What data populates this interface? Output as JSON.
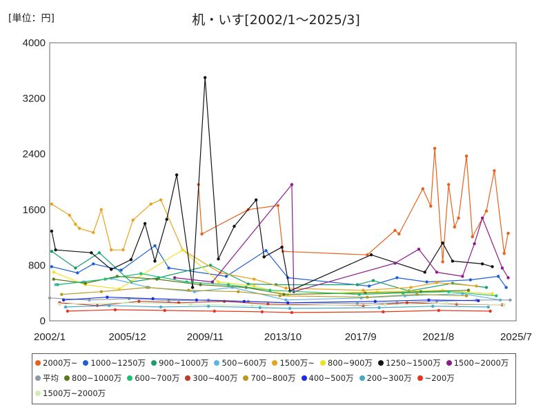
{
  "header": {
    "unit": "[単位：円]",
    "title": "机・いす[2002/1〜2025/3]"
  },
  "chart_data": {
    "type": "line",
    "title": "机・いす[2002/1〜2025/3]",
    "unit_label": "[単位：円]",
    "ylim": [
      0,
      4000
    ],
    "y_ticks": [
      "0",
      "800",
      "1600",
      "2400",
      "3200",
      "4000"
    ],
    "y_tick_values": [
      0,
      800,
      1600,
      2400,
      3200,
      4000
    ],
    "x_ticks": [
      "2002/1",
      "2005/12",
      "2009/11",
      "2013/10",
      "2017/9",
      "2021/8",
      "2025/7"
    ],
    "x_tick_values": [
      2002.0,
      2005.917,
      2009.833,
      2013.75,
      2017.667,
      2021.583,
      2025.5
    ],
    "xlim": [
      2002.0,
      2025.5
    ],
    "grid": true,
    "legend_position": "bottom",
    "series": [
      {
        "name": "2000万~",
        "color": "#e8601c",
        "points": [
          [
            2009.5,
            1960
          ],
          [
            2009.67,
            1250
          ],
          [
            2012.0,
            1600
          ],
          [
            2013.5,
            1660
          ],
          [
            2013.75,
            1000
          ],
          [
            2018.0,
            950
          ],
          [
            2019.4,
            1300
          ],
          [
            2019.6,
            1250
          ],
          [
            2020.8,
            1900
          ],
          [
            2021.2,
            1650
          ],
          [
            2021.4,
            2480
          ],
          [
            2021.8,
            850
          ],
          [
            2022.1,
            1960
          ],
          [
            2022.4,
            1350
          ],
          [
            2022.6,
            1480
          ],
          [
            2023.0,
            2370
          ],
          [
            2023.3,
            1210
          ],
          [
            2024.0,
            1580
          ],
          [
            2024.4,
            2160
          ],
          [
            2024.9,
            970
          ],
          [
            2025.1,
            1260
          ]
        ]
      },
      {
        "name": "1000~1250万",
        "color": "#1f5fd6",
        "points": [
          [
            2002.1,
            780
          ],
          [
            2003.4,
            690
          ],
          [
            2004.2,
            820
          ],
          [
            2005.6,
            730
          ],
          [
            2007.3,
            1080
          ],
          [
            2008.0,
            760
          ],
          [
            2010.9,
            640
          ],
          [
            2012.9,
            1010
          ],
          [
            2014.0,
            620
          ],
          [
            2018.1,
            500
          ],
          [
            2019.5,
            620
          ],
          [
            2021.0,
            560
          ],
          [
            2023.2,
            590
          ],
          [
            2024.6,
            640
          ],
          [
            2025.0,
            480
          ]
        ]
      },
      {
        "name": "900~1000万",
        "color": "#16a068",
        "points": [
          [
            2002.1,
            1000
          ],
          [
            2003.3,
            760
          ],
          [
            2004.5,
            980
          ],
          [
            2006.1,
            560
          ],
          [
            2007.5,
            620
          ],
          [
            2010.1,
            800
          ],
          [
            2012.0,
            530
          ],
          [
            2013.4,
            520
          ],
          [
            2017.5,
            520
          ],
          [
            2018.3,
            580
          ],
          [
            2020.1,
            430
          ],
          [
            2022.3,
            540
          ],
          [
            2024.0,
            480
          ]
        ]
      },
      {
        "name": "500~600万",
        "color": "#5ab4e8",
        "points": [
          [
            2002.3,
            520
          ],
          [
            2003.7,
            560
          ],
          [
            2005.1,
            610
          ],
          [
            2007.0,
            480
          ],
          [
            2009.3,
            420
          ],
          [
            2011.2,
            480
          ],
          [
            2013.9,
            300
          ],
          [
            2017.7,
            330
          ],
          [
            2019.9,
            360
          ],
          [
            2022.8,
            390
          ],
          [
            2024.7,
            300
          ]
        ]
      },
      {
        "name": "1500万~",
        "color": "#e8a21c",
        "points": [
          [
            2002.1,
            1680
          ],
          [
            2003.0,
            1520
          ],
          [
            2003.3,
            1390
          ],
          [
            2003.5,
            1330
          ],
          [
            2004.2,
            1270
          ],
          [
            2004.6,
            1600
          ],
          [
            2005.1,
            1020
          ],
          [
            2005.7,
            1020
          ],
          [
            2006.2,
            1450
          ],
          [
            2007.1,
            1680
          ],
          [
            2007.6,
            1740
          ],
          [
            2008.7,
            1020
          ],
          [
            2010.6,
            690
          ],
          [
            2012.3,
            600
          ],
          [
            2013.9,
            470
          ],
          [
            2017.8,
            440
          ],
          [
            2020.2,
            480
          ],
          [
            2021.5,
            550
          ],
          [
            2023.5,
            500
          ]
        ]
      },
      {
        "name": "800~900万",
        "color": "#f0e020",
        "points": [
          [
            2002.2,
            700
          ],
          [
            2003.8,
            520
          ],
          [
            2005.5,
            460
          ],
          [
            2008.7,
            1020
          ],
          [
            2010.5,
            560
          ],
          [
            2012.3,
            500
          ],
          [
            2014.0,
            380
          ],
          [
            2018.5,
            420
          ],
          [
            2021.8,
            440
          ],
          [
            2024.3,
            390
          ]
        ]
      },
      {
        "name": "1250~1500万",
        "color": "#111111",
        "points": [
          [
            2002.1,
            1290
          ],
          [
            2002.3,
            1020
          ],
          [
            2004.1,
            980
          ],
          [
            2005.1,
            740
          ],
          [
            2006.1,
            880
          ],
          [
            2006.8,
            1400
          ],
          [
            2007.3,
            860
          ],
          [
            2007.9,
            1460
          ],
          [
            2008.4,
            2100
          ],
          [
            2009.2,
            480
          ],
          [
            2009.83,
            3500
          ],
          [
            2010.5,
            890
          ],
          [
            2011.3,
            1360
          ],
          [
            2012.4,
            1740
          ],
          [
            2012.8,
            920
          ],
          [
            2013.7,
            1060
          ],
          [
            2014.1,
            430
          ],
          [
            2018.2,
            950
          ],
          [
            2020.9,
            700
          ],
          [
            2021.8,
            1120
          ],
          [
            2022.3,
            860
          ],
          [
            2023.8,
            820
          ],
          [
            2024.3,
            780
          ]
        ]
      },
      {
        "name": "1500~2000万",
        "color": "#8e1a8e",
        "points": [
          [
            2008.3,
            620
          ],
          [
            2010.2,
            560
          ],
          [
            2014.2,
            1960
          ],
          [
            2014.3,
            420
          ],
          [
            2019.4,
            830
          ],
          [
            2020.6,
            1030
          ],
          [
            2021.5,
            700
          ],
          [
            2022.8,
            640
          ],
          [
            2023.4,
            1110
          ],
          [
            2023.8,
            1480
          ],
          [
            2024.8,
            760
          ],
          [
            2025.1,
            620
          ]
        ]
      },
      {
        "name": "平均",
        "color": "#8a9aa8",
        "points": [
          [
            2002.0,
            330
          ],
          [
            2004.0,
            300
          ],
          [
            2006.0,
            320
          ],
          [
            2008.0,
            290
          ],
          [
            2010.0,
            300
          ],
          [
            2012.0,
            280
          ],
          [
            2014.0,
            260
          ],
          [
            2017.5,
            250
          ],
          [
            2019.5,
            260
          ],
          [
            2021.5,
            280
          ],
          [
            2023.5,
            300
          ],
          [
            2025.2,
            300
          ]
        ]
      },
      {
        "name": "800~1000万",
        "color": "#5a7a1e",
        "points": [
          [
            2002.2,
            600
          ],
          [
            2003.8,
            540
          ],
          [
            2005.4,
            640
          ],
          [
            2007.4,
            600
          ],
          [
            2009.6,
            520
          ],
          [
            2011.9,
            480
          ],
          [
            2013.8,
            380
          ],
          [
            2017.9,
            400
          ],
          [
            2020.7,
            420
          ],
          [
            2023.1,
            440
          ]
        ]
      },
      {
        "name": "600~700万",
        "color": "#20c070",
        "points": [
          [
            2002.4,
            520
          ],
          [
            2004.8,
            600
          ],
          [
            2006.6,
            680
          ],
          [
            2008.9,
            560
          ],
          [
            2011.0,
            520
          ],
          [
            2013.1,
            440
          ],
          [
            2017.6,
            380
          ],
          [
            2019.8,
            400
          ],
          [
            2022.1,
            420
          ],
          [
            2024.5,
            360
          ]
        ]
      },
      {
        "name": "300~400万",
        "color": "#c0392b",
        "points": [
          [
            2002.5,
            260
          ],
          [
            2004.4,
            220
          ],
          [
            2006.5,
            280
          ],
          [
            2008.5,
            260
          ],
          [
            2010.8,
            280
          ],
          [
            2013.0,
            240
          ],
          [
            2017.8,
            220
          ],
          [
            2020.0,
            260
          ],
          [
            2022.5,
            240
          ],
          [
            2024.8,
            230
          ]
        ]
      },
      {
        "name": "700~800万",
        "color": "#b89a1e",
        "points": [
          [
            2002.6,
            380
          ],
          [
            2004.6,
            420
          ],
          [
            2006.9,
            480
          ],
          [
            2009.0,
            440
          ],
          [
            2011.5,
            420
          ],
          [
            2013.6,
            360
          ],
          [
            2018.0,
            340
          ],
          [
            2020.5,
            380
          ],
          [
            2023.0,
            360
          ]
        ]
      },
      {
        "name": "400~500万",
        "color": "#1a2ee0",
        "points": [
          [
            2002.7,
            300
          ],
          [
            2004.9,
            340
          ],
          [
            2007.2,
            320
          ],
          [
            2009.4,
            300
          ],
          [
            2011.8,
            280
          ],
          [
            2014.0,
            260
          ],
          [
            2018.4,
            280
          ],
          [
            2021.1,
            300
          ],
          [
            2023.6,
            290
          ]
        ]
      },
      {
        "name": "200~300万",
        "color": "#48a8c8",
        "points": [
          [
            2002.8,
            200
          ],
          [
            2005.0,
            220
          ],
          [
            2007.6,
            200
          ],
          [
            2010.0,
            210
          ],
          [
            2012.6,
            190
          ],
          [
            2014.1,
            180
          ],
          [
            2018.6,
            190
          ],
          [
            2021.3,
            210
          ],
          [
            2024.1,
            200
          ]
        ]
      },
      {
        "name": "~200万",
        "color": "#e8341c",
        "points": [
          [
            2002.9,
            140
          ],
          [
            2005.3,
            160
          ],
          [
            2007.8,
            150
          ],
          [
            2010.3,
            140
          ],
          [
            2012.7,
            130
          ],
          [
            2014.2,
            120
          ],
          [
            2018.8,
            130
          ],
          [
            2021.6,
            150
          ],
          [
            2024.2,
            140
          ]
        ]
      },
      {
        "name": "1500万~2000万",
        "color": "#d0ecb8",
        "points": [
          [
            2002.5,
            240
          ],
          [
            2005.8,
            260
          ],
          [
            2009.1,
            240
          ],
          [
            2012.2,
            220
          ],
          [
            2018.9,
            230
          ],
          [
            2022.0,
            250
          ],
          [
            2024.9,
            230
          ]
        ]
      }
    ]
  }
}
